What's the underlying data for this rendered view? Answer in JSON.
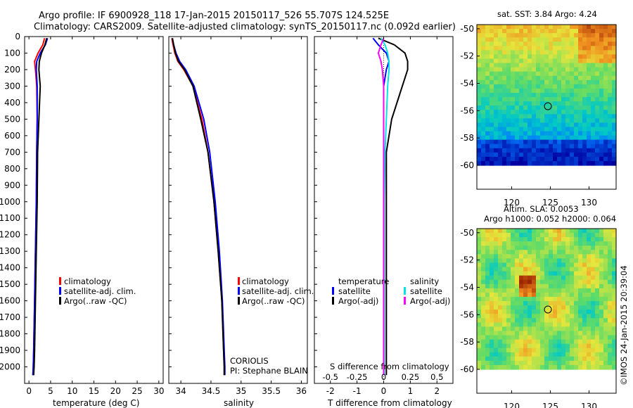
{
  "header": {
    "title_line1": "Argo profile: IF 6900928_118 17-Jan-2015 20150117_526 55.707S 124.525E",
    "title_line2": "Climatology: CARS2009. Satellite-adjusted climatology: synTS_20150117.nc (0.092d earlier)"
  },
  "colors": {
    "climatology": "#ff0000",
    "satellite": "#0000ff",
    "argo": "#000000",
    "sal_satellite": "#00e5e5",
    "sal_argo": "#ff00ff"
  },
  "chart_data": [
    {
      "type": "line",
      "id": "temperature",
      "xlabel": "temperature (deg C)",
      "ylabel": "",
      "xlim": [
        -1,
        31
      ],
      "ylim": [
        2100,
        0
      ],
      "xticks": [
        0,
        5,
        10,
        15,
        20,
        25,
        30
      ],
      "yticks": [
        0,
        100,
        200,
        300,
        400,
        500,
        600,
        700,
        800,
        900,
        1000,
        1100,
        1200,
        1300,
        1400,
        1500,
        1600,
        1700,
        1800,
        1900,
        2000
      ],
      "legend": [
        "climatology",
        "satellite-adj. clim.",
        "Argo(..raw -QC)"
      ],
      "series": [
        {
          "name": "climatology",
          "color": "red",
          "x": [
            3.6,
            3.2,
            2.1,
            1.3,
            1.5,
            1.8,
            1.9,
            1.8,
            1.7,
            1.5,
            1.3,
            1.1,
            1.0,
            0.9
          ],
          "y": [
            10,
            50,
            100,
            150,
            200,
            300,
            500,
            700,
            1000,
            1300,
            1600,
            1900,
            2000,
            2050
          ]
        },
        {
          "name": "satellite-adj. clim.",
          "color": "blue",
          "x": [
            4.3,
            3.8,
            2.6,
            1.8,
            1.7,
            1.9,
            1.9,
            1.8,
            1.7,
            1.5,
            1.3,
            1.1,
            1.0,
            0.9
          ],
          "y": [
            10,
            50,
            100,
            150,
            200,
            300,
            500,
            700,
            1000,
            1300,
            1600,
            1900,
            2000,
            2050
          ]
        },
        {
          "name": "Argo(..raw -QC)",
          "color": "black",
          "x": [
            4.1,
            3.7,
            2.9,
            2.4,
            2.3,
            2.6,
            2.3,
            2.0,
            1.9,
            1.7,
            1.5,
            1.3,
            1.2,
            1.1
          ],
          "y": [
            10,
            50,
            100,
            150,
            200,
            300,
            500,
            700,
            1000,
            1300,
            1600,
            1900,
            2000,
            2050
          ]
        }
      ]
    },
    {
      "type": "line",
      "id": "salinity",
      "xlabel": "salinity",
      "ylabel": "",
      "xlim": [
        33.8,
        36.1
      ],
      "ylim": [
        2100,
        0
      ],
      "xticks": [
        34,
        34.5,
        35,
        35.5,
        36
      ],
      "legend": [
        "climatology",
        "satellite-adj. clim.",
        "Argo(..raw -QC)"
      ],
      "annotation": {
        "line1": "CORIOLIS",
        "line2": "PI: Stephane BLAIN"
      },
      "series": [
        {
          "name": "climatology",
          "color": "red",
          "x": [
            33.85,
            33.87,
            33.9,
            33.95,
            34.05,
            34.2,
            34.35,
            34.45,
            34.55,
            34.62,
            34.68,
            34.71,
            34.72,
            34.72
          ],
          "y": [
            10,
            50,
            100,
            150,
            200,
            300,
            500,
            700,
            1000,
            1300,
            1600,
            1900,
            2000,
            2050
          ]
        },
        {
          "name": "satellite-adj. clim.",
          "color": "blue",
          "x": [
            33.86,
            33.88,
            33.92,
            33.98,
            34.08,
            34.22,
            34.38,
            34.48,
            34.57,
            34.64,
            34.69,
            34.72,
            34.73,
            34.73
          ],
          "y": [
            10,
            50,
            100,
            150,
            200,
            300,
            500,
            700,
            1000,
            1300,
            1600,
            1900,
            2000,
            2050
          ]
        },
        {
          "name": "Argo(..raw -QC)",
          "color": "black",
          "x": [
            33.86,
            33.88,
            33.91,
            33.96,
            34.06,
            34.2,
            34.33,
            34.45,
            34.55,
            34.62,
            34.68,
            34.71,
            34.72,
            34.72
          ],
          "y": [
            10,
            50,
            100,
            150,
            200,
            300,
            500,
            700,
            1000,
            1300,
            1600,
            1900,
            2000,
            2050
          ]
        }
      ]
    },
    {
      "type": "line",
      "id": "difference",
      "xlabel": "T difference from climatology",
      "xlabel_top": "S difference from climatology",
      "xlim": [
        -2.6,
        2.6
      ],
      "ylim": [
        2100,
        0
      ],
      "xticks": [
        -2,
        -1,
        0,
        1,
        2
      ],
      "xticks_top": [
        -0.5,
        -0.25,
        0,
        0.25,
        0.5
      ],
      "legend_temperature": {
        "title": "temperature",
        "items": [
          "satellite",
          "Argo(-adj)"
        ]
      },
      "legend_salinity": {
        "title": "salinity",
        "items": [
          "satellite",
          "Argo(-adj)"
        ]
      },
      "series": [
        {
          "name": "T satellite",
          "color": "blue",
          "x": [
            -0.4,
            -0.2,
            0.1,
            0.2,
            0.1,
            0.0,
            0.0,
            0.0,
            0.0,
            0.0,
            0.0,
            0.0
          ],
          "y": [
            10,
            50,
            100,
            150,
            200,
            300,
            500,
            700,
            1000,
            1400,
            1800,
            2050
          ]
        },
        {
          "name": "T Argo(-adj)",
          "color": "black",
          "x": [
            -0.2,
            0.4,
            0.8,
            0.9,
            0.9,
            0.7,
            0.3,
            0.1,
            0.1,
            0.1,
            0.1,
            0.1
          ],
          "y": [
            10,
            50,
            100,
            150,
            200,
            300,
            500,
            700,
            1000,
            1400,
            1800,
            2050
          ]
        },
        {
          "name": "S satellite",
          "color": "cyan",
          "x": [
            -0.1,
            0.05,
            0.15,
            0.2,
            0.2,
            0.15,
            0.1,
            0.05,
            0.02,
            0.02,
            0.02,
            0.02
          ],
          "y": [
            10,
            50,
            100,
            150,
            200,
            300,
            500,
            700,
            1000,
            1400,
            1800,
            2050
          ]
        },
        {
          "name": "S Argo(-adj)",
          "color": "magenta",
          "x": [
            0.0,
            -0.1,
            -0.2,
            -0.1,
            -0.05,
            0.0,
            0.0,
            0.0,
            0.0,
            0.0,
            0.0,
            0.0
          ],
          "y": [
            10,
            50,
            100,
            150,
            200,
            300,
            500,
            700,
            1000,
            1400,
            1800,
            2050
          ]
        }
      ]
    },
    {
      "type": "heatmap",
      "id": "sst_map",
      "title": "sat. SST: 3.84  Argo: 4.24",
      "xticks": [
        120,
        125,
        130
      ],
      "yticks": [
        -50,
        -52,
        -54,
        -56,
        -58,
        -60
      ],
      "xlim": [
        115.5,
        133.5
      ],
      "ylim": [
        -60,
        -49.7
      ],
      "marker": {
        "lon": 124.5,
        "lat": -55.7
      }
    },
    {
      "type": "heatmap",
      "id": "sla_map",
      "title_line1": "Altim. SLA: 0.0053",
      "title_line2": "Argo h1000: 0.052 h2000: 0.064",
      "xticks": [
        120,
        125,
        130
      ],
      "yticks": [
        -50,
        -52,
        -54,
        -56,
        -58,
        -60
      ],
      "xlim": [
        115.5,
        133.5
      ],
      "ylim": [
        -60,
        -49.7
      ],
      "marker": {
        "lon": 124.5,
        "lat": -55.7
      }
    }
  ],
  "footer": {
    "stamp": "©IMOS 24-Jan-2015 20:39:04"
  }
}
